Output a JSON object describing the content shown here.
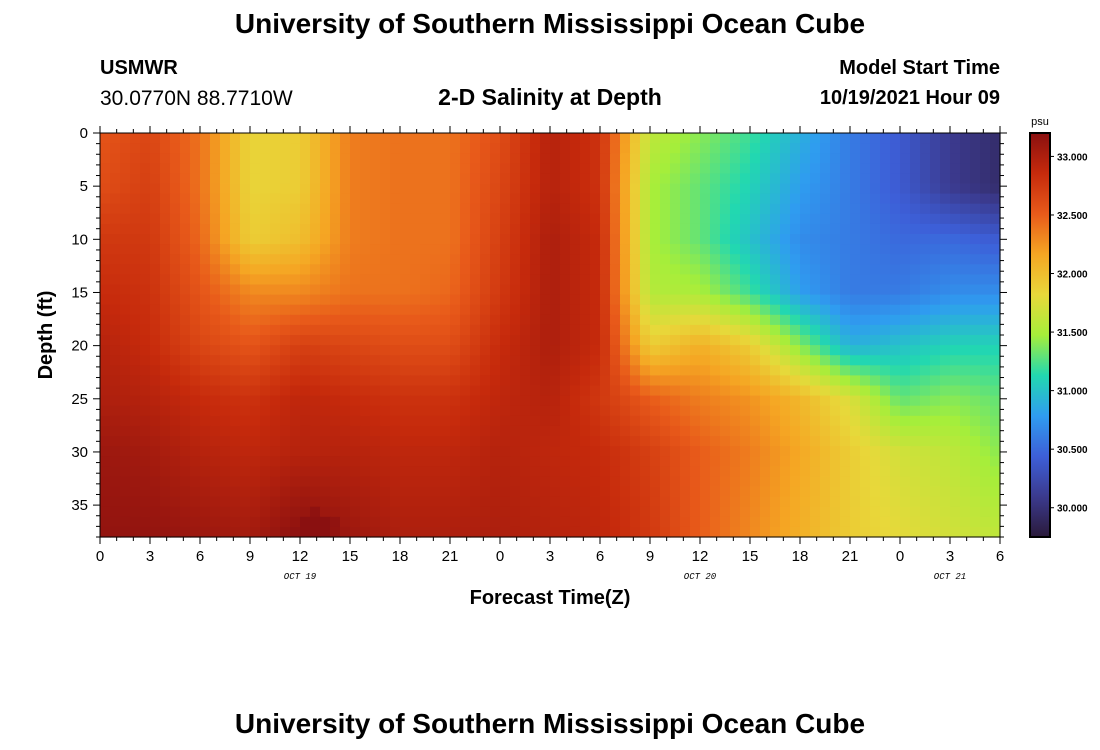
{
  "page": {
    "title": "University of Southern Mississippi Ocean Cube",
    "footer_title": "University of Southern Mississippi Ocean Cube",
    "station": "USMWR",
    "coordinates": "30.0770N  88.7710W",
    "subtitle": "2-D Salinity at Depth",
    "model_start_label": "Model Start Time",
    "model_start_value": "10/19/2021 Hour 09"
  },
  "chart_data": {
    "type": "heatmap",
    "title": "2-D Salinity at Depth",
    "xlabel": "Forecast Time(Z)",
    "ylabel": "Depth (ft)",
    "x_range_hours": [
      0,
      54
    ],
    "x_tick_step_hours": 3,
    "x_tick_labels": [
      "0",
      "3",
      "6",
      "9",
      "12",
      "15",
      "18",
      "21",
      "0",
      "3",
      "6",
      "9",
      "12",
      "15",
      "18",
      "21",
      "0",
      "3",
      "6"
    ],
    "date_labels": [
      {
        "text": "OCT 19",
        "hour": 12
      },
      {
        "text": "OCT 20",
        "hour": 36
      },
      {
        "text": "OCT 21",
        "hour": 51
      }
    ],
    "y_range_ft": [
      0,
      38
    ],
    "y_tick_values": [
      0,
      5,
      10,
      15,
      20,
      25,
      30,
      35
    ],
    "y_tick_labels": [
      "0",
      "5",
      "10",
      "15",
      "20",
      "25",
      "30",
      "35"
    ],
    "colorbar": {
      "unit": "psu",
      "range": [
        29.75,
        33.2
      ],
      "tick_values": [
        30.0,
        30.5,
        31.0,
        31.5,
        32.0,
        32.5,
        33.0
      ],
      "tick_labels": [
        "30.000",
        "30.500",
        "31.000",
        "31.500",
        "32.000",
        "32.500",
        "33.000"
      ],
      "colors": [
        "#2a1a3a",
        "#3b3a8e",
        "#3d5fd8",
        "#2f9cf0",
        "#22d8b0",
        "#a6ee3a",
        "#e8d83a",
        "#f5a623",
        "#e85a1a",
        "#c62a0c",
        "#8a1010"
      ]
    },
    "grid": {
      "hours": [
        0,
        3,
        6,
        9,
        12,
        15,
        18,
        21,
        24,
        27,
        30,
        33,
        36,
        39,
        42,
        45,
        48,
        51,
        54
      ],
      "depths_ft": [
        0,
        5,
        10,
        15,
        20,
        25,
        30,
        38
      ],
      "salinity_psu": [
        [
          32.55,
          32.65,
          32.4,
          31.85,
          31.9,
          32.35,
          32.4,
          32.4,
          32.6,
          32.95,
          32.8,
          31.6,
          31.4,
          31.2,
          30.9,
          30.6,
          30.4,
          30.1,
          29.95
        ],
        [
          32.6,
          32.7,
          32.4,
          31.85,
          31.9,
          32.35,
          32.4,
          32.4,
          32.65,
          32.95,
          32.8,
          31.5,
          31.3,
          31.1,
          30.8,
          30.6,
          30.4,
          30.1,
          29.95
        ],
        [
          32.75,
          32.75,
          32.45,
          31.9,
          32.0,
          32.35,
          32.4,
          32.4,
          32.7,
          33.0,
          32.85,
          31.5,
          31.3,
          31.0,
          30.7,
          30.6,
          30.5,
          30.5,
          30.4
        ],
        [
          32.85,
          32.8,
          32.55,
          32.3,
          32.3,
          32.4,
          32.4,
          32.45,
          32.75,
          33.0,
          32.85,
          31.55,
          31.5,
          31.2,
          30.8,
          30.6,
          30.6,
          30.7,
          30.7
        ],
        [
          32.95,
          32.85,
          32.65,
          32.55,
          32.7,
          32.65,
          32.6,
          32.6,
          32.85,
          33.0,
          32.85,
          31.9,
          32.1,
          31.9,
          31.4,
          30.9,
          31.0,
          31.1,
          31.1
        ],
        [
          33.0,
          32.95,
          32.85,
          32.8,
          32.9,
          32.85,
          32.8,
          32.8,
          32.9,
          32.95,
          32.75,
          32.5,
          32.35,
          32.25,
          32.05,
          31.75,
          31.3,
          31.4,
          31.3
        ],
        [
          33.1,
          33.05,
          32.95,
          32.9,
          32.95,
          32.95,
          32.9,
          32.9,
          32.95,
          32.9,
          32.85,
          32.7,
          32.5,
          32.35,
          32.15,
          31.9,
          31.7,
          31.6,
          31.4
        ],
        [
          33.15,
          33.15,
          33.1,
          33.05,
          33.2,
          33.1,
          33.0,
          33.0,
          33.0,
          32.95,
          32.9,
          32.75,
          32.5,
          32.3,
          32.1,
          31.9,
          31.8,
          31.7,
          31.6
        ]
      ],
      "hotspot": {
        "hour": 13,
        "depth_ft": 37,
        "psu": 33.45
      }
    }
  }
}
